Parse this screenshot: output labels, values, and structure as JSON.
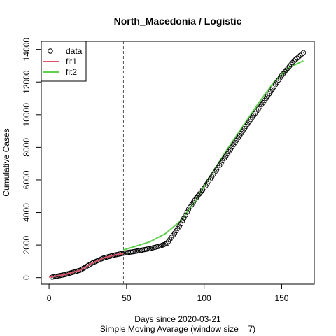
{
  "chart_data": {
    "type": "scatter",
    "title": "North_Macedonia / Logistic",
    "xlabel": "Days since 2020-03-21",
    "subtitle": "Simple Moving Avarage (window size = 7)",
    "ylabel": "Cumulative Cases",
    "xlim": [
      -5,
      171
    ],
    "ylim": [
      -400,
      14500
    ],
    "x_ticks": [
      0,
      50,
      100,
      150
    ],
    "y_ticks": [
      0,
      2000,
      4000,
      6000,
      8000,
      10000,
      12000,
      14000
    ],
    "vline_x": 48,
    "legend": {
      "position": "top-left",
      "entries": [
        {
          "name": "data",
          "kind": "point",
          "color": "#000000"
        },
        {
          "name": "fit1",
          "kind": "line",
          "color": "#DF536B"
        },
        {
          "name": "fit2",
          "kind": "line",
          "color": "#61D04F"
        }
      ]
    },
    "data_knots": [
      [
        2,
        30
      ],
      [
        10,
        180
      ],
      [
        20,
        450
      ],
      [
        28,
        900
      ],
      [
        35,
        1200
      ],
      [
        42,
        1380
      ],
      [
        48,
        1500
      ],
      [
        55,
        1600
      ],
      [
        65,
        1780
      ],
      [
        72,
        1950
      ],
      [
        76,
        2100
      ],
      [
        80,
        2600
      ],
      [
        85,
        3300
      ],
      [
        90,
        4200
      ],
      [
        95,
        4900
      ],
      [
        100,
        5500
      ],
      [
        110,
        6900
      ],
      [
        120,
        8300
      ],
      [
        130,
        9700
      ],
      [
        140,
        11000
      ],
      [
        150,
        12400
      ],
      [
        158,
        13300
      ],
      [
        164,
        13800
      ]
    ],
    "fit1_knots": [
      [
        0,
        30
      ],
      [
        10,
        180
      ],
      [
        20,
        450
      ],
      [
        28,
        900
      ],
      [
        35,
        1200
      ],
      [
        42,
        1380
      ],
      [
        48,
        1480
      ]
    ],
    "fit2_knots": [
      [
        48,
        1700
      ],
      [
        55,
        1900
      ],
      [
        65,
        2200
      ],
      [
        75,
        2700
      ],
      [
        85,
        3500
      ],
      [
        95,
        4800
      ],
      [
        105,
        6400
      ],
      [
        115,
        7900
      ],
      [
        125,
        9300
      ],
      [
        135,
        10700
      ],
      [
        145,
        12000
      ],
      [
        155,
        12900
      ],
      [
        164,
        13300
      ]
    ]
  }
}
